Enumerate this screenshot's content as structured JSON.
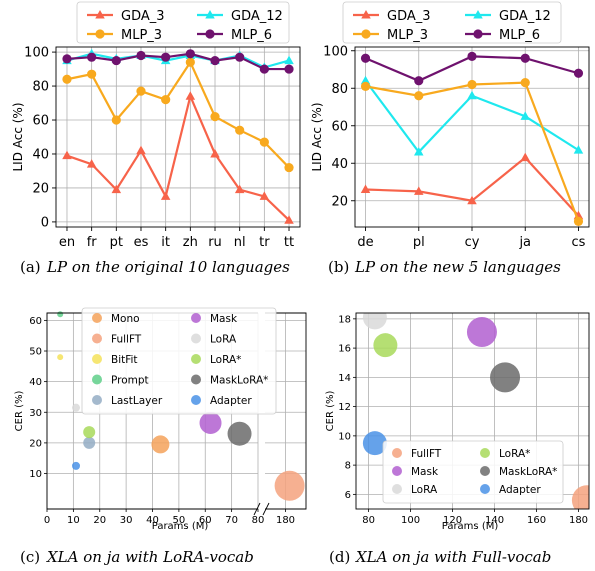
{
  "colors": {
    "GDA_3": "#f7634a",
    "GDA_12": "#1fe8ee",
    "MLP_3": "#f8a91e",
    "MLP_6": "#6f126e",
    "Mono": "#f5a25a",
    "FullFT": "#f4a27e",
    "BitFit": "#f5e25a",
    "Prompt": "#5fcf8a",
    "LastLayer": "#94adc4",
    "Mask": "#b25fd0",
    "LoRA": "#d9d9d9",
    "LoRA*": "#a8d95a",
    "MaskLoRA*": "#6b6b6b",
    "Adapter": "#4a92e6"
  },
  "chart_data": [
    {
      "type": "line",
      "id": "a",
      "caption_label": "(a)",
      "caption": "LP on the original 10 languages",
      "ylabel": "LID Acc (%)",
      "xlabel": "",
      "categories": [
        "en",
        "fr",
        "pt",
        "es",
        "it",
        "zh",
        "ru",
        "nl",
        "tr",
        "tt"
      ],
      "ylim": [
        -3,
        103
      ],
      "yticks": [
        0,
        20,
        40,
        60,
        80,
        100
      ],
      "grid": true,
      "legend_position": "top-outside",
      "series": [
        {
          "name": "GDA_3",
          "marker": "triangle",
          "values": [
            39,
            34,
            19,
            42,
            15,
            74,
            40,
            19,
            15,
            1
          ]
        },
        {
          "name": "GDA_12",
          "marker": "triangle",
          "values": [
            95,
            99,
            96,
            98,
            95,
            98,
            95,
            98,
            91,
            95
          ]
        },
        {
          "name": "MLP_3",
          "marker": "circle",
          "values": [
            84,
            87,
            60,
            77,
            72,
            94,
            62,
            54,
            47,
            32
          ]
        },
        {
          "name": "MLP_6",
          "marker": "circle",
          "values": [
            96,
            97,
            95,
            98,
            97,
            99,
            95,
            97,
            90,
            90
          ]
        }
      ]
    },
    {
      "type": "line",
      "id": "b",
      "caption_label": "(b)",
      "caption": "LP on the new 5 languages",
      "ylabel": "LID Acc (%)",
      "xlabel": "",
      "categories": [
        "de",
        "pl",
        "cy",
        "ja",
        "cs"
      ],
      "ylim": [
        6,
        102
      ],
      "yticks": [
        20,
        40,
        60,
        80,
        100
      ],
      "grid": true,
      "legend_position": "top-outside",
      "series": [
        {
          "name": "GDA_3",
          "marker": "triangle",
          "values": [
            26,
            25,
            20,
            43,
            12
          ]
        },
        {
          "name": "GDA_12",
          "marker": "triangle",
          "values": [
            84,
            46,
            76,
            65,
            47
          ]
        },
        {
          "name": "MLP_3",
          "marker": "circle",
          "values": [
            81,
            76,
            82,
            83,
            9
          ]
        },
        {
          "name": "MLP_6",
          "marker": "circle",
          "values": [
            96,
            84,
            97,
            96,
            88
          ]
        }
      ]
    },
    {
      "type": "scatter",
      "id": "c",
      "caption_label": "(c)",
      "caption": "XLA on ja with LoRA-vocab",
      "ylabel": "CER (%)",
      "xlabel": "Params (M)",
      "broken_x_axis": true,
      "xticks": [
        0,
        10,
        20,
        30,
        40,
        50,
        60,
        70,
        80,
        180
      ],
      "yticks": [
        10,
        20,
        30,
        40,
        50,
        60
      ],
      "grid": true,
      "legend_position": "upper-center",
      "points": [
        {
          "name": "Mono",
          "x": 43,
          "y": 19.5,
          "size": 9
        },
        {
          "name": "FullFT",
          "x": 182,
          "y": 6,
          "size": 15
        },
        {
          "name": "BitFit",
          "x": 5,
          "y": 48,
          "size": 3
        },
        {
          "name": "Prompt",
          "x": 5,
          "y": 62,
          "size": 3
        },
        {
          "name": "LastLayer",
          "x": 16,
          "y": 20,
          "size": 6
        },
        {
          "name": "Mask",
          "x": 62,
          "y": 26.5,
          "size": 11
        },
        {
          "name": "LoRA",
          "x": 11,
          "y": 31.5,
          "size": 4
        },
        {
          "name": "LoRA*",
          "x": 16,
          "y": 23.5,
          "size": 6
        },
        {
          "name": "MaskLoRA*",
          "x": 73,
          "y": 23,
          "size": 12
        },
        {
          "name": "Adapter",
          "x": 11,
          "y": 12.5,
          "size": 4
        }
      ],
      "legend": [
        "Mono",
        "Mask",
        "FullFT",
        "LoRA",
        "BitFit",
        "LoRA*",
        "Prompt",
        "MaskLoRA*",
        "LastLayer",
        "Adapter"
      ]
    },
    {
      "type": "scatter",
      "id": "d",
      "caption_label": "(d)",
      "caption": "XLA on ja with Full-vocab",
      "ylabel": "CER (%)",
      "xlabel": "Params (M)",
      "xlim": [
        74,
        185
      ],
      "ylim": [
        5,
        18.4
      ],
      "xticks": [
        80,
        100,
        120,
        140,
        160,
        180
      ],
      "yticks": [
        6,
        8,
        10,
        12,
        14,
        16,
        18
      ],
      "grid": true,
      "legend_position": "lower-center",
      "points": [
        {
          "name": "FullFT",
          "x": 184,
          "y": 5.6,
          "size": 15
        },
        {
          "name": "Mask",
          "x": 134,
          "y": 17.1,
          "size": 15
        },
        {
          "name": "LoRA",
          "x": 83,
          "y": 18.1,
          "size": 12
        },
        {
          "name": "LoRA*",
          "x": 88,
          "y": 16.2,
          "size": 12
        },
        {
          "name": "MaskLoRA*",
          "x": 145,
          "y": 14,
          "size": 15
        },
        {
          "name": "Adapter",
          "x": 83,
          "y": 9.5,
          "size": 12
        }
      ],
      "legend": [
        "FullFT",
        "LoRA*",
        "Mask",
        "MaskLoRA*",
        "LoRA",
        "Adapter"
      ]
    }
  ]
}
